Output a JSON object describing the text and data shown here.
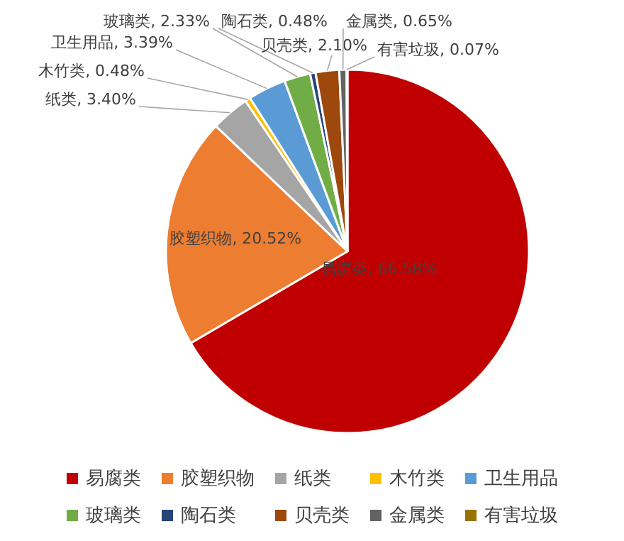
{
  "chart_data": {
    "type": "pie",
    "categories": [
      "易腐类",
      "胶塑织物",
      "纸类",
      "木竹类",
      "卫生用品",
      "玻璃类",
      "陶石类",
      "贝壳类",
      "金属类",
      "有害垃圾"
    ],
    "values": [
      66.58,
      20.52,
      3.4,
      0.48,
      3.39,
      2.33,
      0.48,
      2.1,
      0.65,
      0.07
    ],
    "colors": [
      "#c00000",
      "#ed7d31",
      "#a5a5a5",
      "#ffc000",
      "#5b9bd5",
      "#70ad47",
      "#264478",
      "#9e480e",
      "#636363",
      "#997300"
    ],
    "value_labels": [
      "易腐类, 66.58%",
      "胶塑织物, 20.52%",
      "纸类, 3.40%",
      "木竹类, 0.48%",
      "卫生用品, 3.39%",
      "玻璃类, 2.33%",
      "陶石类, 0.48%",
      "贝壳类, 2.10%",
      "金属类, 0.65%",
      "有害垃圾, 0.07%"
    ],
    "legend": "bottom"
  }
}
